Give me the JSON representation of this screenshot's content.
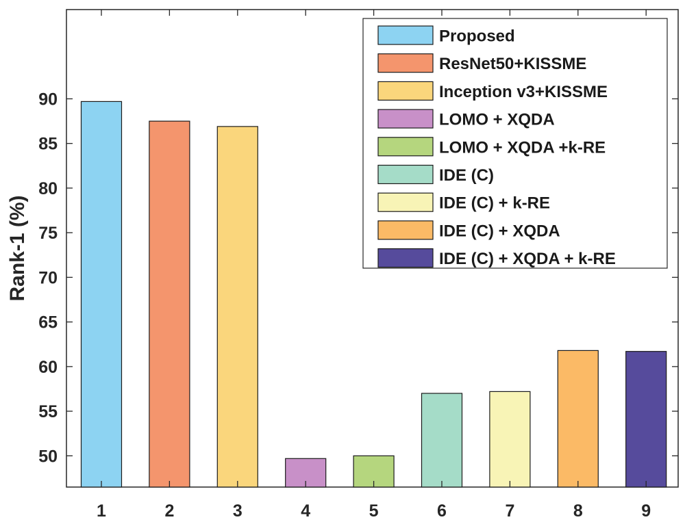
{
  "chart_data": {
    "type": "bar",
    "title": "",
    "xlabel": "",
    "ylabel": "Rank-1 (%)",
    "ylim": [
      46.5,
      100
    ],
    "yticks": [
      50,
      55,
      60,
      65,
      70,
      75,
      80,
      85,
      90
    ],
    "grid": false,
    "legend_position": "top-right",
    "categories": [
      "1",
      "2",
      "3",
      "4",
      "5",
      "6",
      "7",
      "8",
      "9"
    ],
    "values": [
      89.7,
      87.5,
      86.9,
      49.7,
      50.0,
      57.0,
      57.2,
      61.8,
      61.7
    ],
    "series_names": [
      "Proposed",
      "ResNet50+KISSME",
      "Inception v3+KISSME",
      "LOMO + XQDA",
      "LOMO + XQDA +k-RE",
      "IDE (C)",
      "IDE (C) + k-RE",
      "IDE (C) + XQDA",
      "IDE (C) + XQDA + k-RE"
    ],
    "colors": [
      "#8dd3f2",
      "#f4956d",
      "#fad67c",
      "#c890c8",
      "#b5d67e",
      "#a5dcc8",
      "#f8f4b6",
      "#fbba66",
      "#564b9c"
    ]
  }
}
